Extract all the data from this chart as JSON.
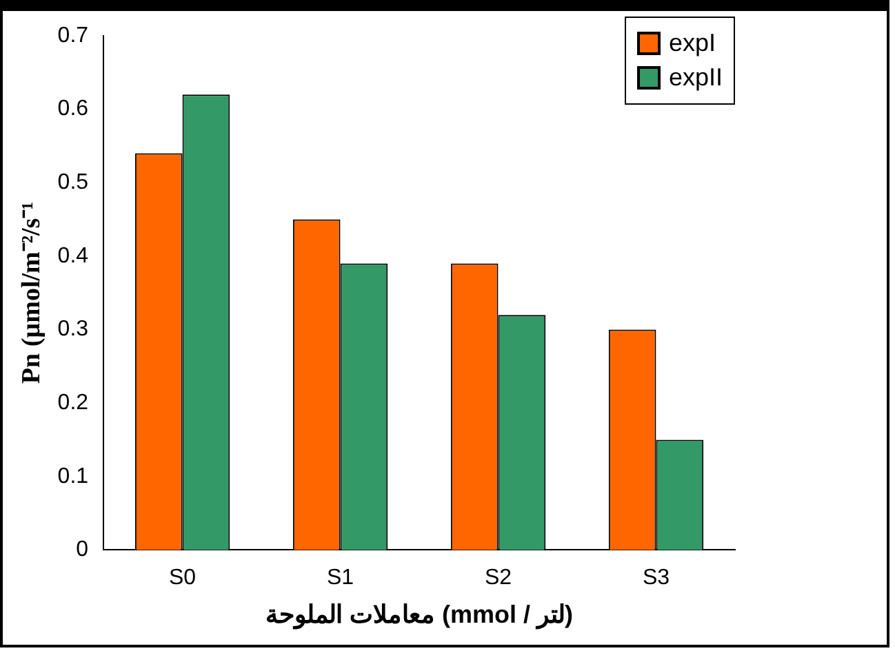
{
  "chart_data": {
    "type": "bar",
    "xlabel": "معاملات الملوحة (mmol / لتر)",
    "ylabel": "Pn (µmol/m⁻²/s⁻¹",
    "categories": [
      "S0",
      "S1",
      "S2",
      "S3"
    ],
    "series": [
      {
        "name": "expI",
        "color": "#ff6600",
        "values": [
          0.54,
          0.45,
          0.39,
          0.3
        ]
      },
      {
        "name": "expII",
        "color": "#339966",
        "values": [
          0.62,
          0.39,
          0.32,
          0.15
        ]
      }
    ],
    "ylim": [
      0,
      0.7
    ],
    "yticks": [
      0,
      0.1,
      0.2,
      0.3,
      0.4,
      0.5,
      0.6,
      0.7
    ],
    "grid": false,
    "legend": "top right"
  }
}
